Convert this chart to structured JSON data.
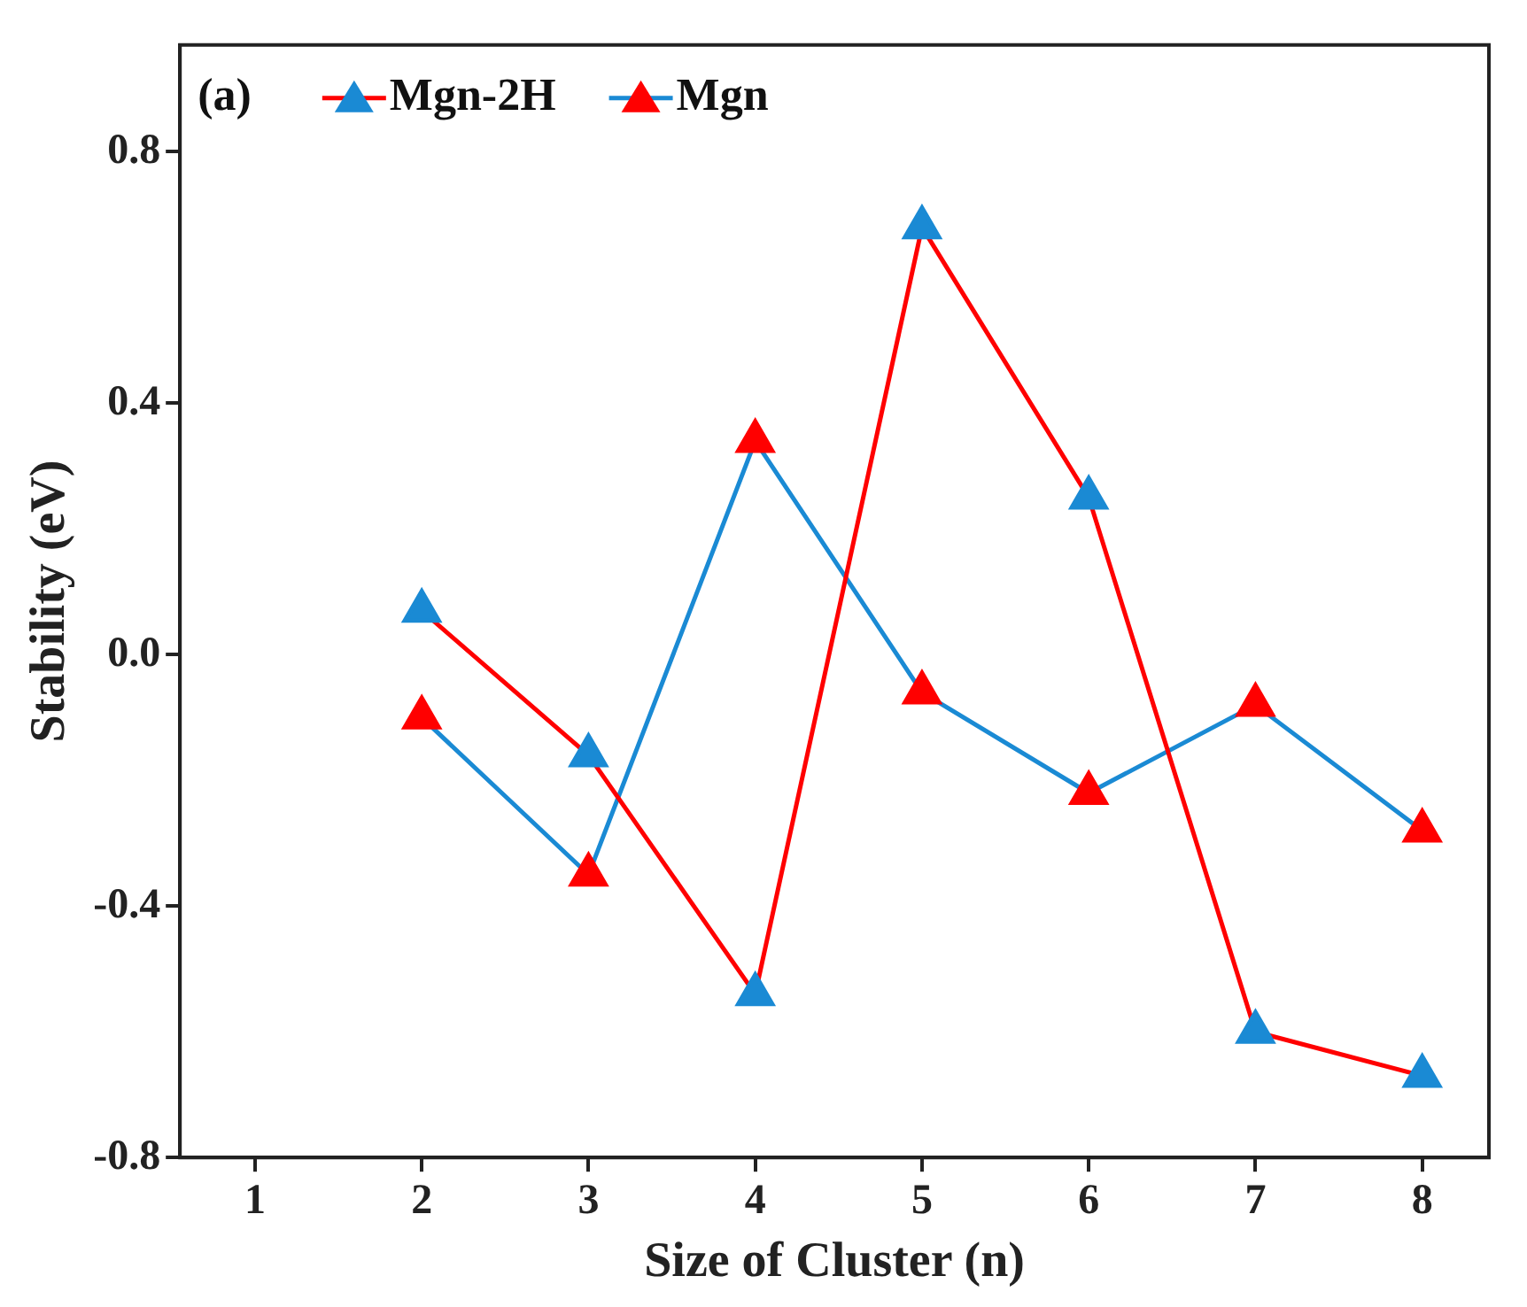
{
  "chart_data": {
    "type": "line",
    "xlabel": "Size of Cluster (n)",
    "ylabel": "Stability (eV)",
    "annotations": [
      "(a)"
    ],
    "x": [
      2,
      3,
      4,
      5,
      6,
      7,
      8
    ],
    "series": [
      {
        "name": "Mgn-2H",
        "color": "#ff0000",
        "colors": [
          "#1a8ad4",
          "#1a8ad4",
          "#1a8ad4",
          "#1a8ad4",
          "#1a8ad4",
          "#1a8ad4",
          "#1a8ad4"
        ],
        "values": [
          0.07,
          -0.16,
          -0.54,
          0.68,
          0.25,
          -0.6,
          -0.67
        ]
      },
      {
        "name": "Mgn",
        "color": "#1a8ad4",
        "colors": [
          "#ff0000",
          "#ff0000",
          "#ff0000",
          "#ff0000",
          "#ff0000",
          "#ff0000",
          "#ff0000"
        ],
        "values": [
          -0.1,
          -0.35,
          0.34,
          -0.06,
          -0.22,
          -0.08,
          -0.28
        ]
      }
    ],
    "xlim": [
      0.55,
      8.4
    ],
    "xticks": [
      1,
      2,
      3,
      4,
      5,
      6,
      7,
      8
    ],
    "ylim": [
      -0.8,
      0.97
    ],
    "yticks": [
      -0.8,
      -0.4,
      {
        "value": 0,
        "label": "0.0"
      },
      0.4,
      0.8
    ],
    "grid": false,
    "legend": "top",
    "marker": "triangle",
    "line_style": "solid"
  }
}
